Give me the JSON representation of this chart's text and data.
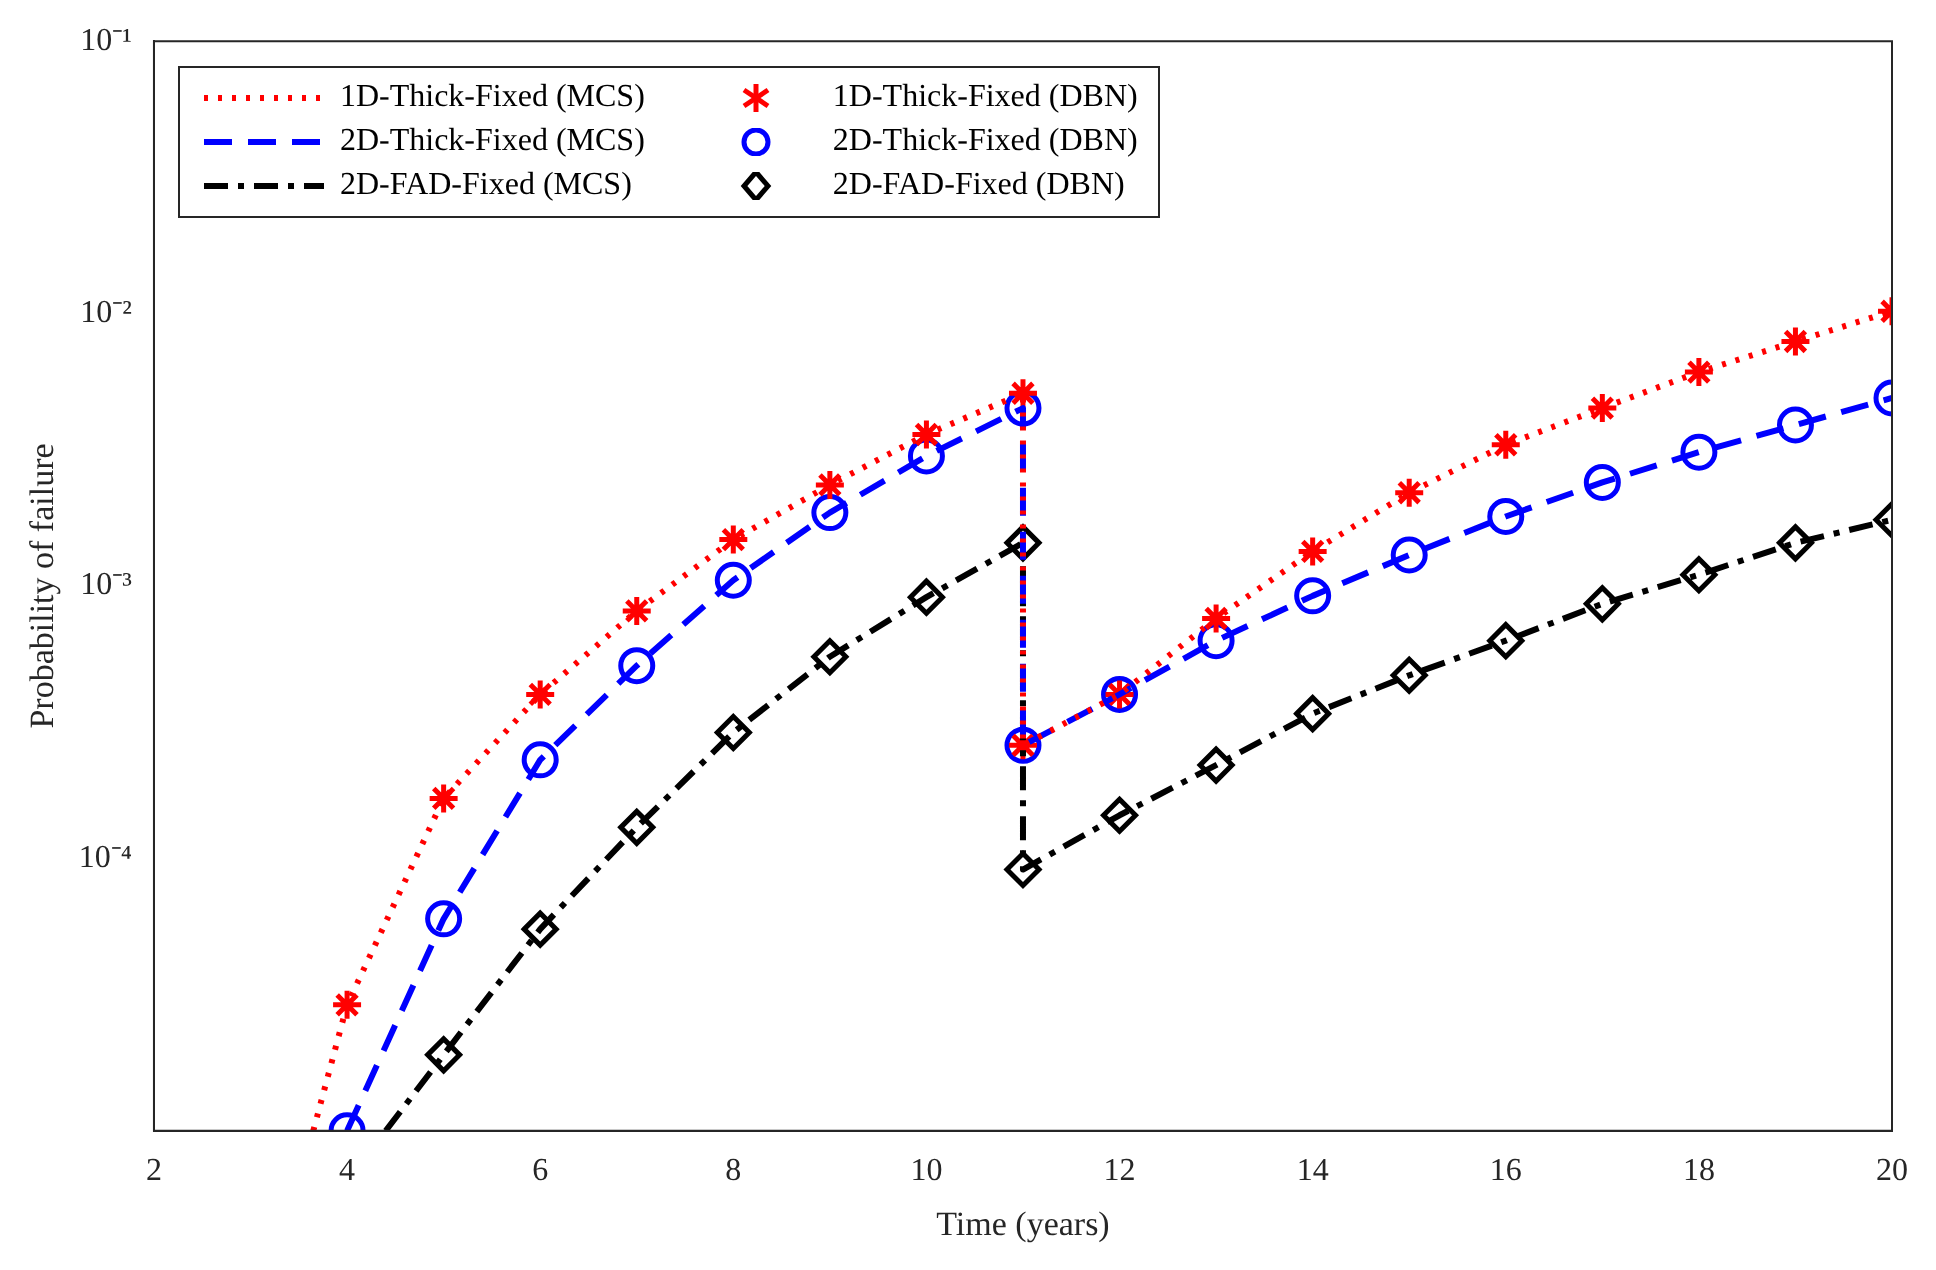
{
  "chart_data": {
    "type": "line",
    "xlabel": "Time (years)",
    "ylabel": "Probability of failure",
    "log": "y",
    "grid": false,
    "legend": "top left",
    "xlim": [
      2,
      20
    ],
    "xticks": [
      2,
      4,
      6,
      8,
      10,
      12,
      14,
      16,
      18,
      20
    ],
    "ylim": [
      1e-05,
      0.1
    ],
    "yticks": [
      {
        "value": 0.0001,
        "label": "10⁻⁴"
      },
      {
        "value": 0.001,
        "label": "10⁻³"
      },
      {
        "value": 0.01,
        "label": "10⁻²"
      },
      {
        "value": 0.1,
        "label": "10⁻¹"
      }
    ],
    "series": [
      {
        "name": "1D-Thick-Fixed (MCS)",
        "line_style": "dotted",
        "color": "#ff0000",
        "x": [
          3.65,
          4,
          5,
          6,
          7,
          8,
          9,
          10,
          11,
          11,
          12,
          13,
          14,
          15,
          16,
          17,
          18,
          19,
          20
        ],
        "values": [
          1e-05,
          2.9e-05,
          0.000166,
          0.0004,
          0.00081,
          0.00148,
          0.00235,
          0.0036,
          0.0051,
          0.00026,
          0.0004,
          0.00076,
          0.00134,
          0.0022,
          0.0033,
          0.0045,
          0.0061,
          0.0079,
          0.0102
        ]
      },
      {
        "name": "2D-Thick-Fixed (MCS)",
        "line_style": "dashed",
        "color": "#0000ff",
        "x": [
          4,
          5,
          6,
          7,
          8,
          9,
          10,
          11,
          11,
          12,
          13,
          14,
          15,
          16,
          17,
          18,
          19,
          20
        ],
        "values": [
          1e-05,
          6e-05,
          0.00023,
          0.00051,
          0.00105,
          0.00186,
          0.003,
          0.0045,
          0.00026,
          0.0004,
          0.00063,
          0.00092,
          0.0013,
          0.0018,
          0.0024,
          0.0031,
          0.0039,
          0.0049
        ]
      },
      {
        "name": "2D-FAD-Fixed (MCS)",
        "line_style": "dashdot",
        "color": "#000000",
        "x": [
          4.4,
          5,
          6,
          7,
          8,
          9,
          10,
          11,
          11,
          12,
          13,
          14,
          15,
          16,
          17,
          18,
          19,
          20
        ],
        "values": [
          1e-05,
          1.9e-05,
          5.5e-05,
          0.00013,
          0.00029,
          0.00055,
          0.00091,
          0.00144,
          9.1e-05,
          0.000144,
          0.00022,
          0.00034,
          0.00047,
          0.00063,
          0.00086,
          0.0011,
          0.00144,
          0.00175
        ]
      },
      {
        "name": "1D-Thick-Fixed (DBN)",
        "type": "scatter",
        "marker": "cross",
        "color": "#ff0000",
        "x": [
          4,
          5,
          6,
          7,
          8,
          9,
          10,
          11,
          11,
          12,
          13,
          14,
          15,
          16,
          17,
          18,
          19,
          20
        ],
        "values": [
          2.9e-05,
          0.000166,
          0.0004,
          0.00081,
          0.00148,
          0.00235,
          0.0036,
          0.0051,
          0.00026,
          0.0004,
          0.00076,
          0.00134,
          0.0022,
          0.0033,
          0.0045,
          0.0061,
          0.0079,
          0.0102
        ]
      },
      {
        "name": "2D-Thick-Fixed (DBN)",
        "type": "scatter",
        "marker": "circle",
        "color": "#0000ff",
        "x": [
          4,
          5,
          6,
          7,
          8,
          9,
          10,
          11,
          11,
          12,
          13,
          14,
          15,
          16,
          17,
          18,
          19,
          20
        ],
        "values": [
          1e-05,
          6e-05,
          0.00023,
          0.00051,
          0.00105,
          0.00186,
          0.003,
          0.0045,
          0.00026,
          0.0004,
          0.00063,
          0.00092,
          0.0013,
          0.0018,
          0.0024,
          0.0031,
          0.0039,
          0.0049
        ]
      },
      {
        "name": "2D-FAD-Fixed (DBN)",
        "type": "scatter",
        "marker": "diamond",
        "color": "#000000",
        "x": [
          5,
          6,
          7,
          8,
          9,
          10,
          11,
          11,
          12,
          13,
          14,
          15,
          16,
          17,
          18,
          19,
          20
        ],
        "values": [
          1.9e-05,
          5.5e-05,
          0.00013,
          0.00029,
          0.00055,
          0.00091,
          0.00144,
          9.1e-05,
          0.000144,
          0.00022,
          0.00034,
          0.00047,
          0.00063,
          0.00086,
          0.0011,
          0.00144,
          0.00175
        ]
      }
    ]
  }
}
